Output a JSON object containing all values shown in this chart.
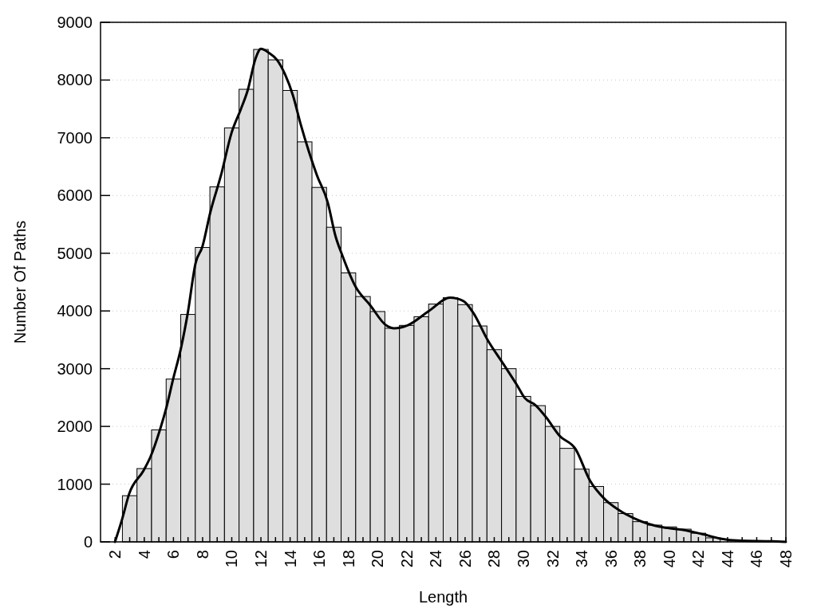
{
  "chart_data": {
    "type": "histogram",
    "xlabel": "Length",
    "ylabel": "Number Of Paths",
    "bins": [
      2.5,
      3.5,
      4.5,
      5.5,
      6.5,
      7.5,
      8.5,
      9.5,
      10.5,
      11.5,
      12.5,
      13.5,
      14.5,
      15.5,
      16.5,
      17.5,
      18.5,
      19.5,
      20.5,
      21.5,
      22.5,
      23.5,
      24.5,
      25.5,
      26.5,
      27.5,
      28.5,
      29.5,
      30.5,
      31.5,
      32.5,
      33.5,
      34.5,
      35.5,
      36.5,
      37.5,
      38.5,
      39.5,
      40.5,
      41.5,
      42.5,
      43.5
    ],
    "series": [
      {
        "color": "#dedede",
        "values": [
          800,
          1270,
          1940,
          2820,
          3940,
          5100,
          6150,
          7170,
          7840,
          8530,
          8350,
          7820,
          6930,
          6140,
          5450,
          4660,
          4250,
          3990,
          3700,
          3750,
          3900,
          4120,
          4230,
          4110,
          3740,
          3330,
          3000,
          2520,
          2360,
          2000,
          1620,
          1260,
          960,
          680,
          490,
          350,
          290,
          260,
          220,
          150,
          70
        ]
      },
      {
        "type": "line",
        "color": "#000000",
        "x": [
          1.99,
          2.5,
          2.96,
          3.96,
          4.42,
          5.06,
          5.51,
          5.97,
          6.52,
          6.98,
          7.52,
          7.98,
          8.53,
          9.26,
          9.99,
          10.63,
          11.09,
          11.64,
          12.0,
          12.55,
          13.1,
          13.65,
          14.2,
          14.74,
          15.29,
          15.84,
          16.57,
          17.12,
          17.57,
          18.49,
          19.49,
          20.59,
          21.14,
          22.05,
          23.52,
          24.97,
          25.89,
          26.53,
          27.54,
          28.63,
          29.55,
          30.1,
          30.82,
          31.55,
          32.47,
          33.57,
          34.57,
          35.58,
          36.67,
          37.58,
          38.59,
          39.6,
          40.88,
          42.34,
          43.44,
          44.9,
          47.09,
          48
        ],
        "values": [
          0,
          410,
          830,
          1240,
          1470,
          1930,
          2320,
          2810,
          3360,
          3960,
          4830,
          5110,
          5710,
          6350,
          7090,
          7500,
          7820,
          8380,
          8540,
          8470,
          8350,
          8100,
          7730,
          7220,
          6760,
          6350,
          5890,
          5290,
          4970,
          4420,
          4100,
          3750,
          3700,
          3750,
          4000,
          4230,
          4170,
          3980,
          3500,
          3080,
          2720,
          2490,
          2370,
          2160,
          1840,
          1610,
          1060,
          740,
          530,
          410,
          310,
          250,
          210,
          130,
          60,
          20,
          10,
          0
        ]
      }
    ],
    "xlim": [
      1,
      48
    ],
    "xticks": [
      2,
      {
        "value": 3,
        "label": null
      },
      4,
      {
        "value": 5,
        "label": null
      },
      6,
      {
        "value": 7,
        "label": null
      },
      8,
      {
        "value": 9,
        "label": null
      },
      10,
      {
        "value": 11,
        "label": null
      },
      12,
      {
        "value": 13,
        "label": null
      },
      14,
      {
        "value": 15,
        "label": null
      },
      16,
      {
        "value": 17,
        "label": null
      },
      18,
      {
        "value": 19,
        "label": null
      },
      20,
      {
        "value": 21,
        "label": null
      },
      22,
      {
        "value": 23,
        "label": null
      },
      24,
      {
        "value": 25,
        "label": null
      },
      26,
      {
        "value": 27,
        "label": null
      },
      28,
      {
        "value": 29,
        "label": null
      },
      30,
      {
        "value": 31,
        "label": null
      },
      32,
      {
        "value": 33,
        "label": null
      },
      34,
      {
        "value": 35,
        "label": null
      },
      36,
      {
        "value": 37,
        "label": null
      },
      38,
      {
        "value": 39,
        "label": null
      },
      40,
      {
        "value": 41,
        "label": null
      },
      42,
      {
        "value": 43,
        "label": null
      },
      44,
      {
        "value": 45,
        "label": null
      },
      46,
      {
        "value": 47,
        "label": null
      },
      48
    ],
    "ylim": [
      0,
      9000
    ],
    "yticks": [
      0,
      1000,
      2000,
      3000,
      4000,
      5000,
      6000,
      7000,
      8000,
      9000
    ],
    "grid": "y"
  }
}
